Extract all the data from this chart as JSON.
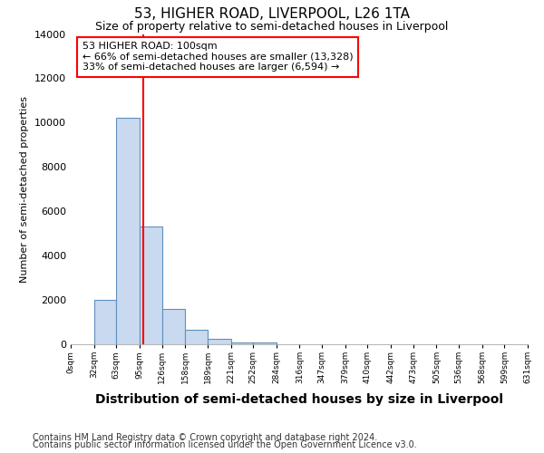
{
  "title": "53, HIGHER ROAD, LIVERPOOL, L26 1TA",
  "subtitle": "Size of property relative to semi-detached houses in Liverpool",
  "xlabel": "Distribution of semi-detached houses by size in Liverpool",
  "ylabel": "Number of semi-detached properties",
  "footnote1": "Contains HM Land Registry data © Crown copyright and database right 2024.",
  "footnote2": "Contains public sector information licensed under the Open Government Licence v3.0.",
  "annotation_line1": "53 HIGHER ROAD: 100sqm",
  "annotation_line2": "← 66% of semi-detached houses are smaller (13,328)",
  "annotation_line3": "33% of semi-detached houses are larger (6,594) →",
  "property_size": 100,
  "bar_edges": [
    0,
    32,
    63,
    95,
    126,
    158,
    189,
    221,
    252,
    284,
    316,
    347,
    379,
    410,
    442,
    473,
    505,
    536,
    568,
    599,
    631
  ],
  "bar_heights": [
    0,
    2000,
    10200,
    5300,
    1600,
    650,
    250,
    100,
    100,
    0,
    0,
    0,
    0,
    0,
    0,
    0,
    0,
    0,
    0,
    0
  ],
  "bar_color": "#c9d9ef",
  "bar_edge_color": "#6090c0",
  "red_line_x": 100,
  "ylim": [
    0,
    14000
  ],
  "xlim": [
    0,
    631
  ],
  "yticks": [
    0,
    2000,
    4000,
    6000,
    8000,
    10000,
    12000,
    14000
  ],
  "tick_labels": [
    "0sqm",
    "32sqm",
    "63sqm",
    "95sqm",
    "126sqm",
    "158sqm",
    "189sqm",
    "221sqm",
    "252sqm",
    "284sqm",
    "316sqm",
    "347sqm",
    "379sqm",
    "410sqm",
    "442sqm",
    "473sqm",
    "505sqm",
    "536sqm",
    "568sqm",
    "599sqm",
    "631sqm"
  ],
  "fig_bg": "#ffffff",
  "plot_bg": "#ffffff",
  "title_fontsize": 11,
  "subtitle_fontsize": 9,
  "xlabel_fontsize": 10,
  "ylabel_fontsize": 8,
  "footnote_fontsize": 7
}
